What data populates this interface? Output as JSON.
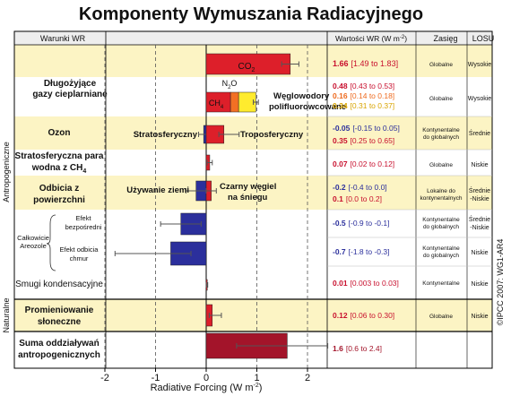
{
  "colors": {
    "positive": "#dd1f2a",
    "negative": "#2b2f9c",
    "total": "#a3142a",
    "band": "#fcf4c4",
    "halo": "#ffeb2e",
    "n2o": "#f27024"
  },
  "header": {
    "title": "Komponenty Wymuszania Radiacyjnego",
    "col_conditions": "Warunki WR",
    "col_values": "Wartości WR (W m",
    "col_values_sup": "-2",
    "col_values_end": ")",
    "col_range": "Zasięg",
    "col_losu": "LOSU"
  },
  "group_labels": {
    "anthropogenic": "Antropogeniczne",
    "natural": "Naturalne",
    "aerosols_a": "Całkowicie",
    "aerosols_b": "Areozole"
  },
  "watermark": "©IPCC 2007: WG1-AR4",
  "row_labels": {
    "ghg_1": "Długożyjące",
    "ghg_2": "gazy cieplarniane",
    "ozone": "Ozon",
    "h2o_1": "Stratosferyczna para",
    "h2o_2": "wodna z CH",
    "h2o_sub": "4",
    "alb_1": "Odbicia z",
    "alb_2": "powierzchni",
    "dir_1": "Efekt",
    "dir_2": "bezpośredni",
    "cloud": "Efekt odbicia",
    "cloud_2": "chmur",
    "contrail": "Smugi kondensacyjne",
    "solar_1": "Promieniowanie",
    "solar_2": "słoneczne",
    "total_1": "Suma oddziaływań",
    "total_2": "antropogenicznych"
  },
  "annotations": {
    "co2": "CO",
    "co2_sub": "2",
    "n2o": "N",
    "n2o_sub": "2",
    "n2o_end": "O",
    "ch4": "CH",
    "ch4_sub": "4",
    "halo_1": "Węglowodory",
    "halo_2": "polifluorowcowane",
    "strat": "Stratosferyczny",
    "trop": "Troposferyczny",
    "land": "Używanie ziemi",
    "bc_1": "Czarny węgiel",
    "bc_2": "na śniegu"
  },
  "values": {
    "co2": "1.66",
    "co2_r": "[1.49 to 1.83]",
    "ch4": "0.48",
    "ch4_r": "[0.43 to 0.53]",
    "n2o": "0.16",
    "n2o_r": "[0.14 to 0.18]",
    "halo": "0.34",
    "halo_r": "[0.31 to 0.37]",
    "o3s": "-0.05",
    "o3s_r": "[-0.15 to 0.05]",
    "o3t": "0.35",
    "o3t_r": "[0.25 to 0.65]",
    "h2o": "0.07",
    "h2o_r": "[0.02 to 0.12]",
    "land": "-0.2",
    "land_r": "[-0.4 to 0.0]",
    "bc": "0.1",
    "bc_r": "[0.0 to 0.2]",
    "dir": "-0.5",
    "dir_r": "[-0.9 to -0.1]",
    "cloud": "-0.7",
    "cloud_r": "[-1.8 to -0.3]",
    "contrail": "0.01",
    "contrail_r": "[0.003 to 0.03]",
    "solar": "0.12",
    "solar_r": "[0.06 to 0.30]",
    "total": "1.6",
    "total_r": "[0.6 to 2.4]"
  },
  "scale": {
    "global": "Globalne",
    "cont_1": "Kontynentalne",
    "cont_2": "do globalnych",
    "local_1": "Lokalne do",
    "local_2": "kontynentalnych",
    "continental": "Kontynentalne"
  },
  "losu": {
    "high": "Wysokie",
    "medium": "Średnie",
    "low": "Niskie",
    "medlow_1": "Średnie",
    "medlow_2": "-Niskie"
  },
  "chart_data": {
    "type": "bar",
    "title": "Komponenty Wymuszania Radiacyjnego",
    "xlabel": "Radiative Forcing  (W m-2)",
    "xlim": [
      -2,
      2.5
    ],
    "xticks": [
      "-2",
      "-1",
      "0",
      "1",
      "2"
    ],
    "orientation": "horizontal",
    "stacked_segments": [
      {
        "name": "CO2",
        "value": 1.66,
        "low": 1.49,
        "high": 1.83
      },
      {
        "name": "CH4",
        "value": 0.48,
        "low": 0.43,
        "high": 0.53
      },
      {
        "name": "N2O",
        "value": 0.16,
        "low": 0.14,
        "high": 0.18
      },
      {
        "name": "Węglowodory polifluorowcowane",
        "value": 0.34,
        "low": 0.31,
        "high": 0.37
      }
    ],
    "bars": [
      {
        "name": "Ozon stratosferyczny",
        "value": -0.05,
        "low": -0.15,
        "high": 0.05
      },
      {
        "name": "Ozon troposferyczny",
        "value": 0.35,
        "low": 0.25,
        "high": 0.65
      },
      {
        "name": "Stratosferyczna para wodna z CH4",
        "value": 0.07,
        "low": 0.02,
        "high": 0.12
      },
      {
        "name": "Używanie ziemi",
        "value": -0.2,
        "low": -0.4,
        "high": 0.0
      },
      {
        "name": "Czarny węgiel na śniegu",
        "value": 0.1,
        "low": 0.0,
        "high": 0.2
      },
      {
        "name": "Efekt bezpośredni",
        "value": -0.5,
        "low": -0.9,
        "high": -0.1
      },
      {
        "name": "Efekt odbicia chmur",
        "value": -0.7,
        "low": -1.8,
        "high": -0.3
      },
      {
        "name": "Smugi kondensacyjne",
        "value": 0.01,
        "low": 0.003,
        "high": 0.03
      },
      {
        "name": "Promieniowanie słoneczne",
        "value": 0.12,
        "low": 0.06,
        "high": 0.3
      },
      {
        "name": "Suma oddziaływań antropogenicznych",
        "value": 1.6,
        "low": 0.6,
        "high": 2.4
      }
    ]
  }
}
